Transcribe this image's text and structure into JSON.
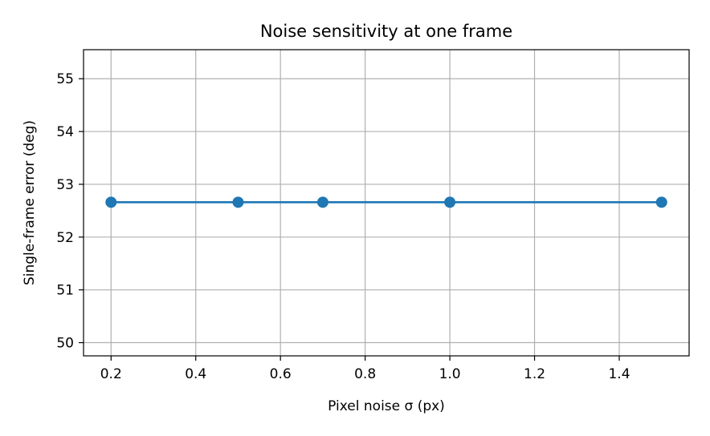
{
  "chart_data": {
    "type": "line",
    "title": "Noise sensitivity at one frame",
    "xlabel": "Pixel noise σ (px)",
    "ylabel": "Single-frame error (deg)",
    "x": [
      0.2,
      0.5,
      0.7,
      1.0,
      1.5
    ],
    "series": [
      {
        "values": [
          52.66,
          52.66,
          52.66,
          52.66,
          52.66
        ],
        "color": "#1f77b4",
        "marker": "circle"
      }
    ],
    "xlim": [
      0.135,
      1.565
    ],
    "ylim": [
      49.75,
      55.55
    ],
    "xticks": [
      0.2,
      0.4,
      0.6,
      0.8,
      1.0,
      1.2,
      1.4
    ],
    "xtick_labels": [
      "0.2",
      "0.4",
      "0.6",
      "0.8",
      "1.0",
      "1.2",
      "1.4"
    ],
    "yticks": [
      50,
      51,
      52,
      53,
      54,
      55
    ],
    "ytick_labels": [
      "50",
      "51",
      "52",
      "53",
      "54",
      "55"
    ],
    "grid": true,
    "grid_color": "#b0b0b0"
  }
}
